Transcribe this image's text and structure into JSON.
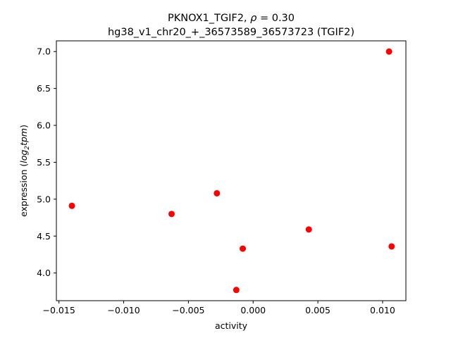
{
  "chart_data": {
    "type": "scatter",
    "title_line1_prefix": "PKNOX1_TGIF2, ",
    "title_line1_rho_symbol": "ρ",
    "title_line1_rho_value": " = 0.30",
    "title_line2": "hg38_v1_chr20_+_36573589_36573723 (TGIF2)",
    "xlabel": "activity",
    "ylabel_prefix": "expression (",
    "ylabel_log": "log",
    "ylabel_sub": "2",
    "ylabel_unit": "tpm",
    "ylabel_suffix": ")",
    "xlim": [
      -0.0152,
      0.0118
    ],
    "ylim": [
      3.625,
      7.145
    ],
    "xticks": [
      {
        "value": -0.015,
        "label": "−0.015"
      },
      {
        "value": -0.01,
        "label": "−0.010"
      },
      {
        "value": -0.005,
        "label": "−0.005"
      },
      {
        "value": 0.0,
        "label": "0.000"
      },
      {
        "value": 0.005,
        "label": "0.005"
      },
      {
        "value": 0.01,
        "label": "0.010"
      }
    ],
    "yticks": [
      {
        "value": 4.0,
        "label": "4.0"
      },
      {
        "value": 4.5,
        "label": "4.5"
      },
      {
        "value": 5.0,
        "label": "5.0"
      },
      {
        "value": 5.5,
        "label": "5.5"
      },
      {
        "value": 6.0,
        "label": "6.0"
      },
      {
        "value": 6.5,
        "label": "6.5"
      },
      {
        "value": 7.0,
        "label": "7.0"
      }
    ],
    "point_color": "#ff0000",
    "points": [
      {
        "x": -0.014,
        "y": 4.91
      },
      {
        "x": -0.0063,
        "y": 4.8
      },
      {
        "x": -0.0028,
        "y": 5.08
      },
      {
        "x": -0.0008,
        "y": 4.33
      },
      {
        "x": -0.0013,
        "y": 3.77
      },
      {
        "x": 0.0043,
        "y": 4.59
      },
      {
        "x": 0.0105,
        "y": 7.0
      },
      {
        "x": 0.0107,
        "y": 4.36
      }
    ]
  }
}
